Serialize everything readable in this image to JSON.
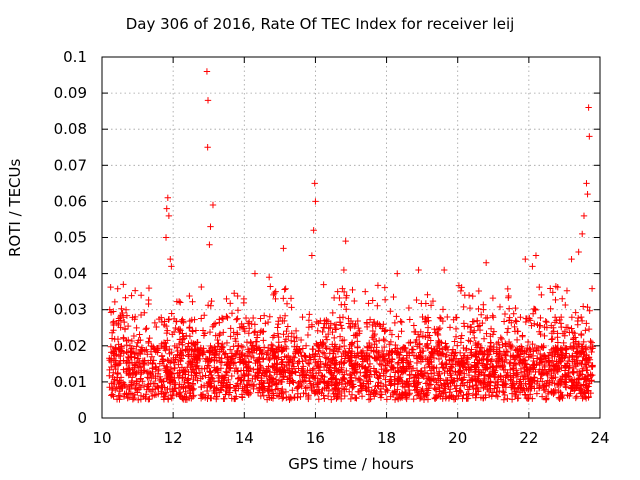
{
  "chart_data": {
    "type": "scatter",
    "title": "Day 306 of 2016, Rate Of TEC Index for receiver leij",
    "xlabel": "GPS time / hours",
    "ylabel": "ROTI / TECUs",
    "xlim": [
      10,
      24
    ],
    "ylim": [
      0,
      0.1
    ],
    "xticks": [
      "10",
      "12",
      "14",
      "16",
      "18",
      "20",
      "22",
      "24"
    ],
    "yticks": [
      "0",
      "0.01",
      "0.02",
      "0.03",
      "0.04",
      "0.05",
      "0.06",
      "0.07",
      "0.08",
      "0.09",
      "0.1"
    ],
    "grid": true,
    "marker": "+",
    "color": "#ff0000",
    "series": [
      {
        "name": "ROTI",
        "note": "dense band 0.005-0.03 TECU from ~10.2 h to ~23.8 h; listed outliers below",
        "points": [
          [
            12.95,
            0.096
          ],
          [
            12.98,
            0.088
          ],
          [
            12.97,
            0.075
          ],
          [
            13.12,
            0.059
          ],
          [
            13.05,
            0.053
          ],
          [
            13.02,
            0.048
          ],
          [
            11.85,
            0.061
          ],
          [
            11.82,
            0.058
          ],
          [
            11.88,
            0.056
          ],
          [
            11.8,
            0.05
          ],
          [
            11.92,
            0.044
          ],
          [
            11.95,
            0.042
          ],
          [
            15.98,
            0.065
          ],
          [
            16.0,
            0.06
          ],
          [
            15.95,
            0.052
          ],
          [
            15.9,
            0.045
          ],
          [
            16.85,
            0.049
          ],
          [
            16.8,
            0.041
          ],
          [
            23.68,
            0.086
          ],
          [
            23.7,
            0.078
          ],
          [
            23.62,
            0.065
          ],
          [
            23.65,
            0.062
          ],
          [
            23.55,
            0.056
          ],
          [
            23.5,
            0.051
          ],
          [
            23.4,
            0.046
          ],
          [
            23.2,
            0.044
          ],
          [
            22.2,
            0.045
          ],
          [
            21.9,
            0.044
          ],
          [
            19.62,
            0.041
          ],
          [
            15.1,
            0.047
          ],
          [
            14.3,
            0.04
          ],
          [
            14.7,
            0.039
          ],
          [
            18.3,
            0.04
          ],
          [
            18.9,
            0.041
          ],
          [
            20.8,
            0.043
          ],
          [
            22.1,
            0.042
          ],
          [
            10.6,
            0.037
          ],
          [
            11.1,
            0.034
          ],
          [
            12.2,
            0.032
          ],
          [
            13.5,
            0.033
          ],
          [
            17.4,
            0.035
          ],
          [
            20.2,
            0.034
          ]
        ]
      }
    ]
  }
}
